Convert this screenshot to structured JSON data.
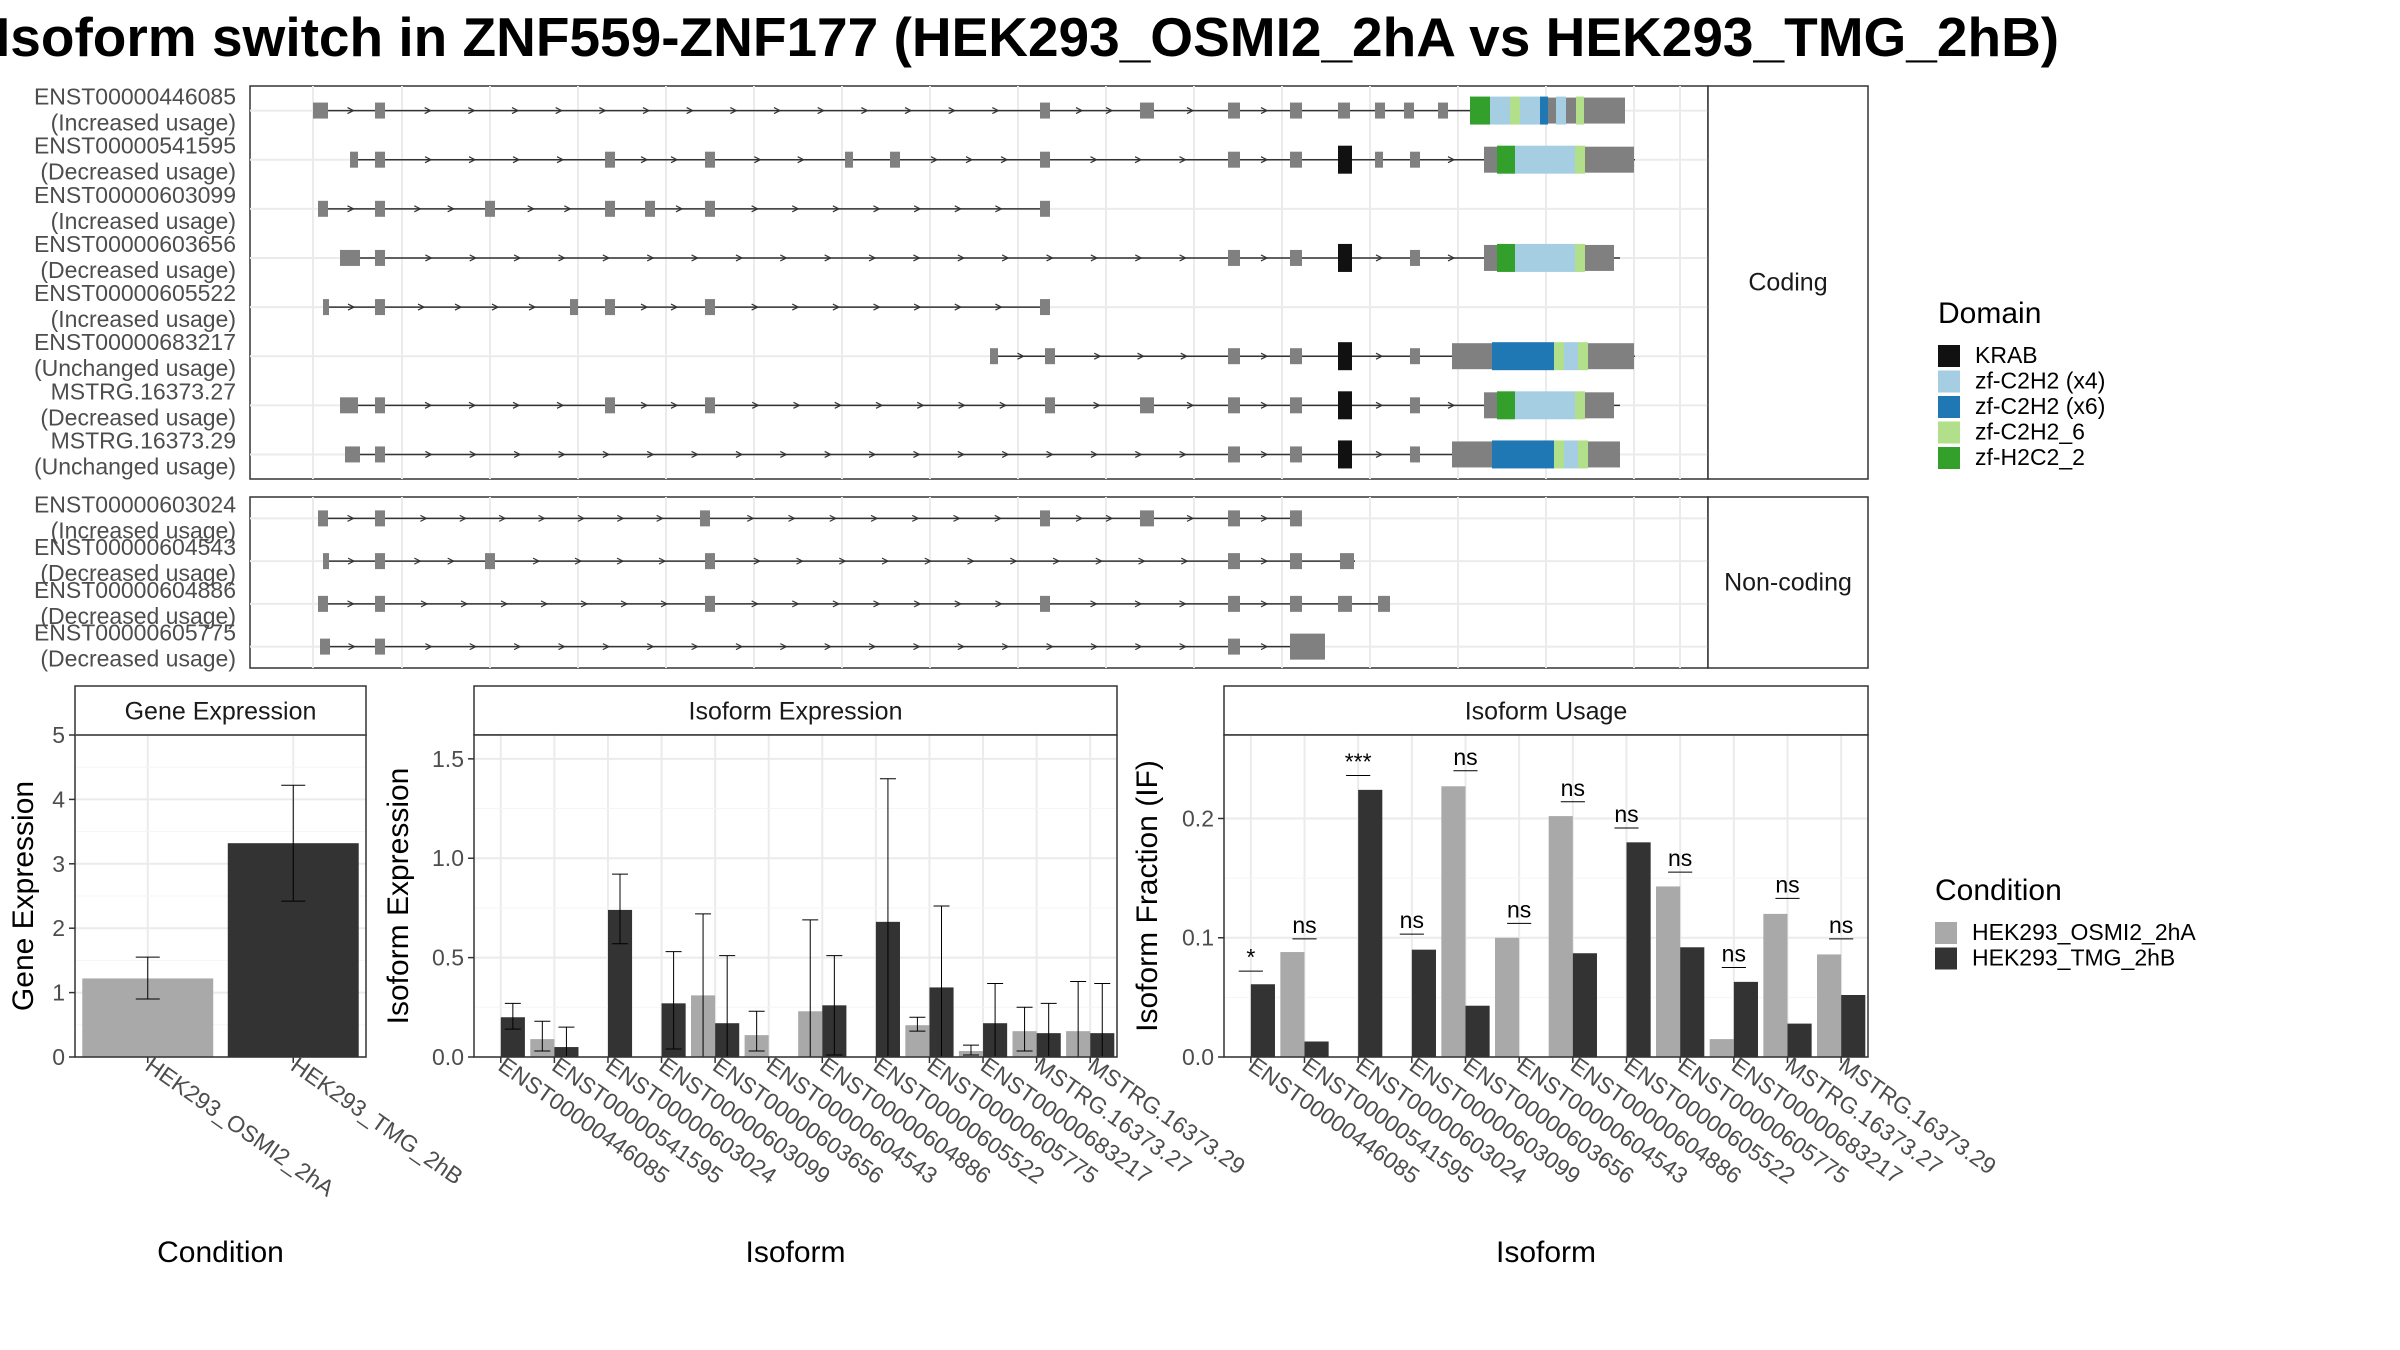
{
  "title": "Isoform switch in ZNF559-ZNF177 (HEK293_OSMI2_2hA vs HEK293_TMG_2hB)",
  "colors": {
    "KRAB": "#111111",
    "zf-C2H2 (x4)": "#a6cee3",
    "zf-C2H2 (x6)": "#1f78b4",
    "zf-C2H2_6": "#b2df8a",
    "zf-H2C2_2": "#33a02c",
    "exon": "#808080",
    "cond1": "#a9a9a9",
    "cond2": "#333333"
  },
  "structure_panels": [
    {
      "strip": "Coding",
      "tracks": [
        {
          "name": "ENST00000446085",
          "usage": "(Increased usage)"
        },
        {
          "name": "ENST00000541595",
          "usage": "(Decreased usage)"
        },
        {
          "name": "ENST00000603099",
          "usage": "(Increased usage)"
        },
        {
          "name": "ENST00000603656",
          "usage": "(Decreased usage)"
        },
        {
          "name": "ENST00000605522",
          "usage": "(Increased usage)"
        },
        {
          "name": "ENST00000683217",
          "usage": "(Unchanged usage)"
        },
        {
          "name": "MSTRG.16373.27",
          "usage": "(Decreased usage)"
        },
        {
          "name": "MSTRG.16373.29",
          "usage": "(Unchanged usage)"
        }
      ]
    },
    {
      "strip": "Non-coding",
      "tracks": [
        {
          "name": "ENST00000603024",
          "usage": "(Increased usage)"
        },
        {
          "name": "ENST00000604543",
          "usage": "(Decreased usage)"
        },
        {
          "name": "ENST00000604886",
          "usage": "(Decreased usage)"
        },
        {
          "name": "ENST00000605775",
          "usage": "(Decreased usage)"
        }
      ]
    }
  ],
  "legend_domain": {
    "title": "Domain",
    "items": [
      "KRAB",
      "zf-C2H2 (x4)",
      "zf-C2H2 (x6)",
      "zf-C2H2_6",
      "zf-H2C2_2"
    ]
  },
  "legend_condition": {
    "title": "Condition",
    "items": [
      "HEK293_OSMI2_2hA",
      "HEK293_TMG_2hB"
    ]
  },
  "chart_data": [
    {
      "type": "bar",
      "title": "Gene Expression",
      "xlabel": "Condition",
      "ylabel": "Gene Expression",
      "ylim": [
        0,
        5
      ],
      "yticks": [
        0,
        1,
        2,
        3,
        4,
        5
      ],
      "categories": [
        "HEK293_OSMI2_2hA",
        "HEK293_TMG_2hB"
      ],
      "values": [
        1.22,
        3.32
      ],
      "err_low": [
        0.9,
        2.42
      ],
      "err_high": [
        1.55,
        4.22
      ],
      "grid": true
    },
    {
      "type": "bar",
      "title": "Isoform Expression",
      "xlabel": "Isoform",
      "ylabel": "Isoform Expression",
      "ylim": [
        0,
        1.62
      ],
      "yticks": [
        0.0,
        0.5,
        1.0,
        1.5
      ],
      "ytick_labels": [
        "0.0",
        "0.5",
        "1.0",
        "1.5"
      ],
      "categories": [
        "ENST00000446085",
        "ENST00000541595",
        "ENST00000603024",
        "ENST00000603099",
        "ENST00000603656",
        "ENST00000604543",
        "ENST00000604886",
        "ENST00000605522",
        "ENST00000605775",
        "ENST00000683217",
        "MSTRG.16373.27",
        "MSTRG.16373.29"
      ],
      "series": [
        {
          "name": "HEK293_OSMI2_2hA",
          "values": [
            0.0,
            0.09,
            0.0,
            0.0,
            0.31,
            0.11,
            0.23,
            0.0,
            0.16,
            0.03,
            0.13,
            0.13
          ],
          "err_low": [
            0.0,
            0.03,
            0.0,
            0.0,
            0.0,
            0.03,
            0.0,
            0.0,
            0.13,
            0.01,
            0.03,
            0.0
          ],
          "err_high": [
            0.0,
            0.18,
            0.0,
            0.0,
            0.72,
            0.23,
            0.69,
            0.0,
            0.2,
            0.06,
            0.25,
            0.38
          ]
        },
        {
          "name": "HEK293_TMG_2hB",
          "values": [
            0.2,
            0.05,
            0.74,
            0.27,
            0.17,
            0.0,
            0.26,
            0.68,
            0.35,
            0.17,
            0.12,
            0.12
          ],
          "err_low": [
            0.14,
            0.0,
            0.57,
            0.04,
            0.0,
            0.0,
            0.01,
            0.0,
            0.0,
            0.0,
            0.0,
            0.0
          ],
          "err_high": [
            0.27,
            0.15,
            0.92,
            0.53,
            0.51,
            0.0,
            0.51,
            1.4,
            0.76,
            0.37,
            0.27,
            0.37
          ]
        }
      ],
      "grid": true
    },
    {
      "type": "bar",
      "title": "Isoform Usage",
      "xlabel": "Isoform",
      "ylabel": "Isoform Fraction (IF)",
      "ylim": [
        0,
        0.27
      ],
      "yticks": [
        0.0,
        0.1,
        0.2
      ],
      "ytick_labels": [
        "0.0",
        "0.1",
        "0.2"
      ],
      "categories": [
        "ENST00000446085",
        "ENST00000541595",
        "ENST00000603024",
        "ENST00000603099",
        "ENST00000603656",
        "ENST00000604543",
        "ENST00000604886",
        "ENST00000605522",
        "ENST00000605775",
        "ENST00000683217",
        "MSTRG.16373.27",
        "MSTRG.16373.29"
      ],
      "series": [
        {
          "name": "HEK293_OSMI2_2hA",
          "values": [
            0.0,
            0.088,
            0.0,
            0.0,
            0.227,
            0.1,
            0.202,
            0.0,
            0.143,
            0.015,
            0.12,
            0.086
          ]
        },
        {
          "name": "HEK293_TMG_2hB",
          "values": [
            0.061,
            0.013,
            0.224,
            0.09,
            0.043,
            0.0,
            0.087,
            0.18,
            0.092,
            0.063,
            0.028,
            0.052
          ]
        }
      ],
      "significance": [
        "*",
        "ns",
        "***",
        "ns",
        "ns",
        "ns",
        "ns",
        "ns",
        "ns",
        "ns",
        "ns",
        "ns"
      ],
      "sig_y": [
        0.072,
        0.099,
        0.236,
        0.103,
        0.24,
        0.112,
        0.214,
        0.192,
        0.155,
        0.075,
        0.133,
        0.099
      ],
      "grid": true
    }
  ]
}
